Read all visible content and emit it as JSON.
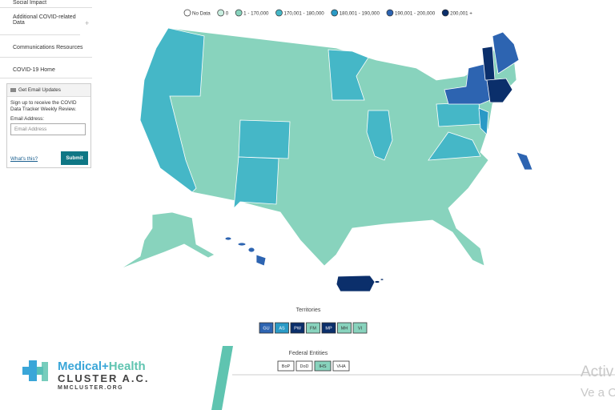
{
  "sidebar": {
    "items": [
      "Social Impact",
      "Additional COVID-related Data",
      "Communications Resources",
      "COVID-19 Home"
    ],
    "expand_icon": "+"
  },
  "email_box": {
    "title": "Get Email Updates",
    "text": "Sign up to receive the COVID Data Tracker Weekly Review.",
    "label": "Email Address:",
    "placeholder": "Email Address",
    "link": "What's this?",
    "button": "Submit"
  },
  "legend": [
    {
      "label": "No Data",
      "color": "#ffffff"
    },
    {
      "label": "0",
      "color": "#c9eee0"
    },
    {
      "label": "1 - 170,000",
      "color": "#88d3bd"
    },
    {
      "label": "170,001 - 180,000",
      "color": "#45b7c7"
    },
    {
      "label": "180,001 - 190,000",
      "color": "#2a9ac6"
    },
    {
      "label": "190,001 - 200,000",
      "color": "#2d64b1"
    },
    {
      "label": "200,001 +",
      "color": "#0b2f6b"
    }
  ],
  "territories": {
    "title": "Territories",
    "items": [
      {
        "label": "GU",
        "color": "#2d64b1"
      },
      {
        "label": "AS",
        "color": "#2a9ac6"
      },
      {
        "label": "PW",
        "color": "#0b2f6b"
      },
      {
        "label": "FM",
        "color": "#88d3bd"
      },
      {
        "label": "MP",
        "color": "#0b2f6b"
      },
      {
        "label": "MH",
        "color": "#88d3bd"
      },
      {
        "label": "VI",
        "color": "#88d3bd"
      }
    ]
  },
  "federal_entities": {
    "title": "Federal Entities",
    "items": [
      {
        "label": "BoP",
        "color": "#ffffff"
      },
      {
        "label": "DoD",
        "color": "#ffffff"
      },
      {
        "label": "IHS",
        "color": "#88d3bd"
      },
      {
        "label": "VHA",
        "color": "#ffffff"
      }
    ]
  },
  "logo": {
    "part1": "Medical",
    "part2": "+",
    "part3": "Health",
    "subtitle": "CLUSTER A.C.",
    "url": "MMCLUSTER.ORG"
  },
  "watermark": {
    "line1": "Activ",
    "line2": "Ve a C"
  }
}
